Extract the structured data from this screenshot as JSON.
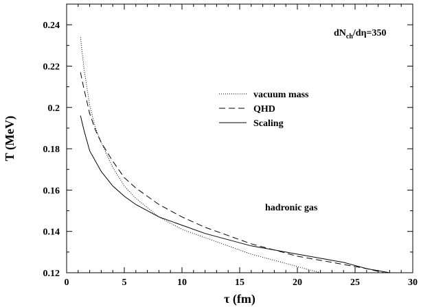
{
  "chart_data": {
    "type": "line",
    "title": "",
    "xlabel": "τ (fm)",
    "ylabel": "T (MeV)",
    "xlim": [
      0,
      30
    ],
    "ylim": [
      0.12,
      0.25
    ],
    "xticks": [
      0,
      5,
      10,
      15,
      20,
      25,
      30
    ],
    "yticks": [
      0.12,
      0.14,
      0.16,
      0.18,
      0.2,
      0.22,
      0.24
    ],
    "ytick_labels": [
      "0.12",
      "0.14",
      "0.16",
      "0.18",
      "0.2",
      "0.22",
      "0.24"
    ],
    "grid": false,
    "legend_position": "center-right",
    "annotations": {
      "multiplicity_main": "dN",
      "multiplicity_sub": "ch",
      "multiplicity_rest": "/dη=350",
      "region": "hadronic gas"
    },
    "series": [
      {
        "name": "vacuum mass",
        "style": "dotted",
        "x": [
          1.2,
          1.5,
          2,
          2.5,
          3,
          4,
          5,
          6,
          8,
          10,
          12,
          14,
          16,
          18,
          20,
          22
        ],
        "y": [
          0.234,
          0.219,
          0.201,
          0.19,
          0.183,
          0.171,
          0.162,
          0.156,
          0.147,
          0.141,
          0.137,
          0.133,
          0.129,
          0.126,
          0.123,
          0.12
        ]
      },
      {
        "name": "QHD",
        "style": "dashed",
        "x": [
          1.2,
          1.5,
          2,
          2.5,
          3,
          4,
          5,
          6,
          8,
          10,
          12,
          14,
          16,
          18,
          20,
          22,
          24,
          26,
          27.5
        ],
        "y": [
          0.217,
          0.209,
          0.197,
          0.189,
          0.183,
          0.174,
          0.166,
          0.161,
          0.153,
          0.147,
          0.142,
          0.138,
          0.134,
          0.131,
          0.128,
          0.126,
          0.124,
          0.122,
          0.12
        ]
      },
      {
        "name": "Scaling",
        "style": "solid",
        "x": [
          1.2,
          1.5,
          2,
          3,
          4,
          5,
          6,
          8,
          10,
          12,
          14,
          16,
          18,
          20,
          22,
          24,
          26,
          28
        ],
        "y": [
          0.196,
          0.189,
          0.179,
          0.169,
          0.162,
          0.157,
          0.153,
          0.147,
          0.143,
          0.139,
          0.136,
          0.133,
          0.131,
          0.129,
          0.127,
          0.125,
          0.122,
          0.12
        ]
      }
    ]
  }
}
